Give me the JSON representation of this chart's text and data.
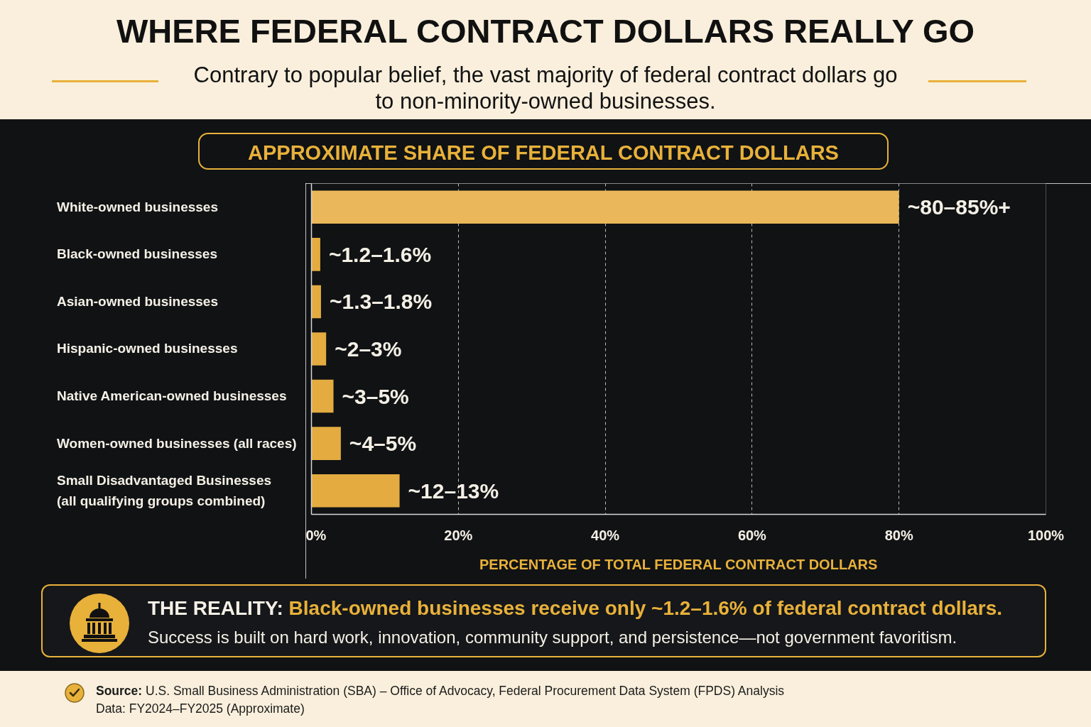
{
  "chart_data": {
    "type": "bar",
    "orientation": "horizontal",
    "title": "WHERE FEDERAL CONTRACT DOLLARS REALLY GO",
    "subtitle": "Contrary to popular belief, the vast majority of federal contract dollars go to non-minority-owned businesses.",
    "categories": [
      "White-owned businesses",
      "Black-owned businesses",
      "Asian-owned businesses",
      "Hispanic-owned businesses",
      "Native American-owned businesses",
      "Women-owned businesses (all races)",
      "Small Disadvantaged Businesses (all qualifying groups combined)"
    ],
    "values": [
      80,
      1.2,
      1.3,
      2,
      3,
      4,
      12
    ],
    "colors": [
      "#eab85a",
      "#e3ab40",
      "#e3ab40",
      "#e3ab40",
      "#e3ab40",
      "#e3ab40",
      "#e3ab40"
    ],
    "value_labels": [
      "~80–85%+",
      "~1.2–1.6%",
      "~1.3–1.8%",
      "~2–3%",
      "~3–5%",
      "~4–5%",
      "~12–13%"
    ],
    "xlim": [
      0,
      100
    ],
    "xticks": [
      {
        "value": 0,
        "label": "0%"
      },
      {
        "value": 20,
        "label": "20%"
      },
      {
        "value": 40,
        "label": "40%"
      },
      {
        "value": 60,
        "label": "60%"
      },
      {
        "value": 80,
        "label": "80%"
      },
      {
        "value": 100,
        "label": "100%"
      }
    ],
    "xlabel": "PERCENTAGE OF TOTAL FEDERAL CONTRACT DOLLARS",
    "grid": "x",
    "annotations": [
      "APPROXIMATE SHARE OF FEDERAL CONTRACT DOLLARS",
      "THE REALITY:",
      "Black-owned businesses receive only ~1.2–1.6% of federal contract dollars.",
      "Success is built on hard work, innovation, community support, and persistence—not government favoritism.",
      "Source:",
      "U.S. Small Business Administration (SBA) – Office of Advocacy, Federal Procurement Data System (FPDS) Analysis",
      "Data: FY2024–FY2025 (Approximate)"
    ]
  }
}
